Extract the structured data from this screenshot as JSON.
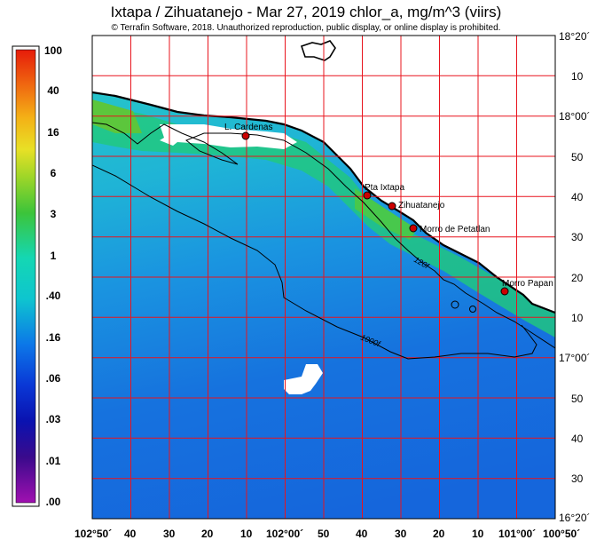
{
  "header": {
    "title": "Ixtapa / Zihuatanejo - Mar 27, 2019  chlor_a, mg/m^3 (viirs)",
    "copyright": "© Terrafin Software,  2018.  Unauthorized reproduction, public display, or online display is prohibited."
  },
  "colorbar": {
    "labels": [
      "100",
      "40",
      "16",
      "6",
      "3",
      "1",
      ".40",
      ".16",
      ".06",
      ".03",
      ".01",
      ".00"
    ]
  },
  "lat_labels": [
    "18°20´",
    "10",
    "18°00´",
    "50",
    "40",
    "30",
    "20",
    "10",
    "17°00´",
    "50",
    "40",
    "30",
    "16°20´"
  ],
  "lon_labels": [
    "102°50´",
    "40",
    "30",
    "20",
    "10",
    "102°00´",
    "50",
    "40",
    "30",
    "20",
    "10",
    "101°00´",
    "100°50´"
  ],
  "places": [
    "L. Cardenas",
    "Pta Ixtapa",
    "Zihuatanejo",
    "Morro de Petatlan",
    "Morro Papan"
  ],
  "contours": [
    "120f",
    "1000f"
  ],
  "colors": {
    "grid": "#e8141e",
    "land": "#ffffff",
    "coast": "#000000",
    "marker": "#cc0000"
  }
}
